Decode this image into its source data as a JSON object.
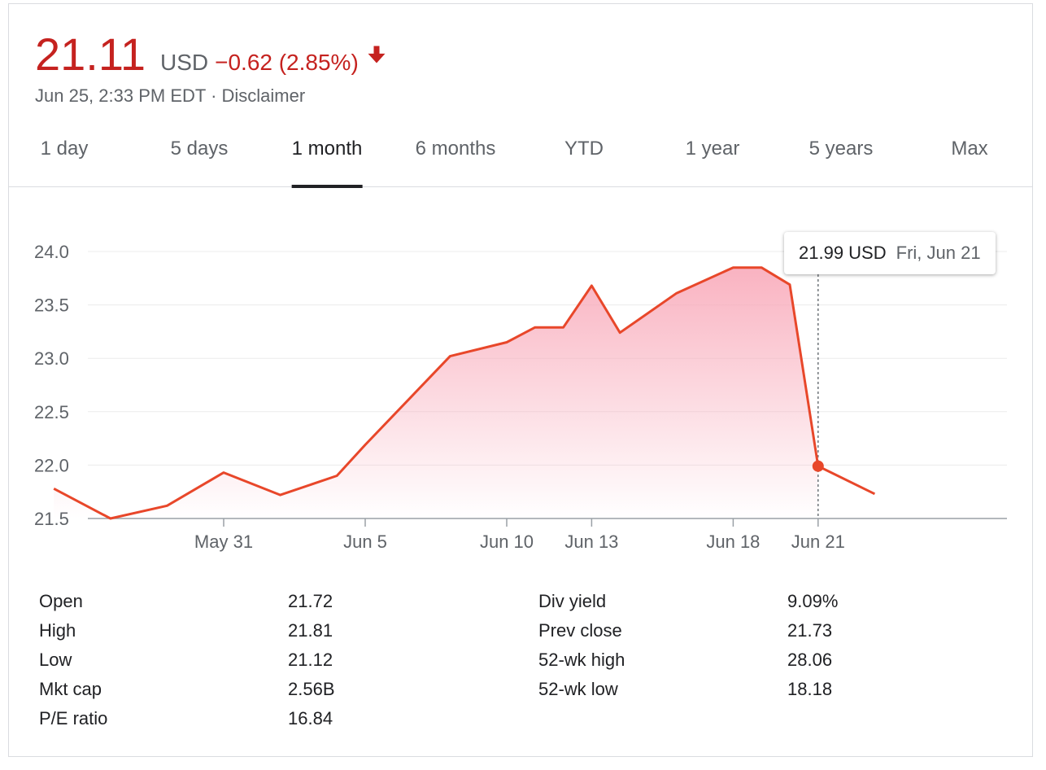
{
  "quote": {
    "price": "21.11",
    "currency": "USD",
    "change": "−0.62 (2.85%)",
    "timestamp": "Jun 25, 2:33 PM EDT",
    "separator": "·",
    "disclaimer": "Disclaimer",
    "down_color": "#c5221f"
  },
  "tabs": [
    {
      "label": "1 day",
      "active": false
    },
    {
      "label": "5 days",
      "active": false
    },
    {
      "label": "1 month",
      "active": true
    },
    {
      "label": "6 months",
      "active": false
    },
    {
      "label": "YTD",
      "active": false
    },
    {
      "label": "1 year",
      "active": false
    },
    {
      "label": "5 years",
      "active": false
    },
    {
      "label": "Max",
      "active": false
    }
  ],
  "tooltip": {
    "value": "21.99 USD",
    "date": "Fri, Jun 21"
  },
  "stats": {
    "left": [
      {
        "label": "Open",
        "value": "21.72"
      },
      {
        "label": "High",
        "value": "21.81"
      },
      {
        "label": "Low",
        "value": "21.12"
      },
      {
        "label": "Mkt cap",
        "value": "2.56B"
      },
      {
        "label": "P/E ratio",
        "value": "16.84"
      }
    ],
    "right": [
      {
        "label": "Div yield",
        "value": "9.09%"
      },
      {
        "label": "Prev close",
        "value": "21.73"
      },
      {
        "label": "52-wk high",
        "value": "28.06"
      },
      {
        "label": "52-wk low",
        "value": "18.18"
      }
    ]
  },
  "chart_data": {
    "type": "area",
    "title": "",
    "xlabel": "",
    "ylabel": "",
    "ylim": [
      21.5,
      24.0
    ],
    "yticks": [
      "24.0",
      "23.5",
      "23.0",
      "22.5",
      "22.0",
      "21.5"
    ],
    "xticks": [
      {
        "label": "May 31",
        "date": "2019-05-31"
      },
      {
        "label": "Jun 5",
        "date": "2019-06-05"
      },
      {
        "label": "Jun 10",
        "date": "2019-06-10"
      },
      {
        "label": "Jun 13",
        "date": "2019-06-13"
      },
      {
        "label": "Jun 18",
        "date": "2019-06-18"
      },
      {
        "label": "Jun 21",
        "date": "2019-06-21"
      }
    ],
    "series": [
      {
        "dates": [
          "2019-05-25",
          "2019-05-27",
          "2019-05-29",
          "2019-05-31",
          "2019-06-02",
          "2019-06-04",
          "2019-06-05",
          "2019-06-08",
          "2019-06-10",
          "2019-06-11",
          "2019-06-12",
          "2019-06-13",
          "2019-06-14",
          "2019-06-16",
          "2019-06-18",
          "2019-06-19",
          "2019-06-20",
          "2019-06-21",
          "2019-06-23"
        ],
        "values": [
          21.78,
          21.5,
          21.62,
          21.93,
          21.72,
          21.9,
          22.19,
          23.02,
          23.15,
          23.29,
          23.29,
          23.68,
          23.24,
          23.61,
          23.85,
          23.85,
          23.69,
          21.99,
          21.73
        ]
      }
    ],
    "highlight": {
      "date": "2019-06-21",
      "value": 21.99
    },
    "grid": true,
    "line_color": "#e8472a",
    "fill_color": "#f8a5b6"
  }
}
